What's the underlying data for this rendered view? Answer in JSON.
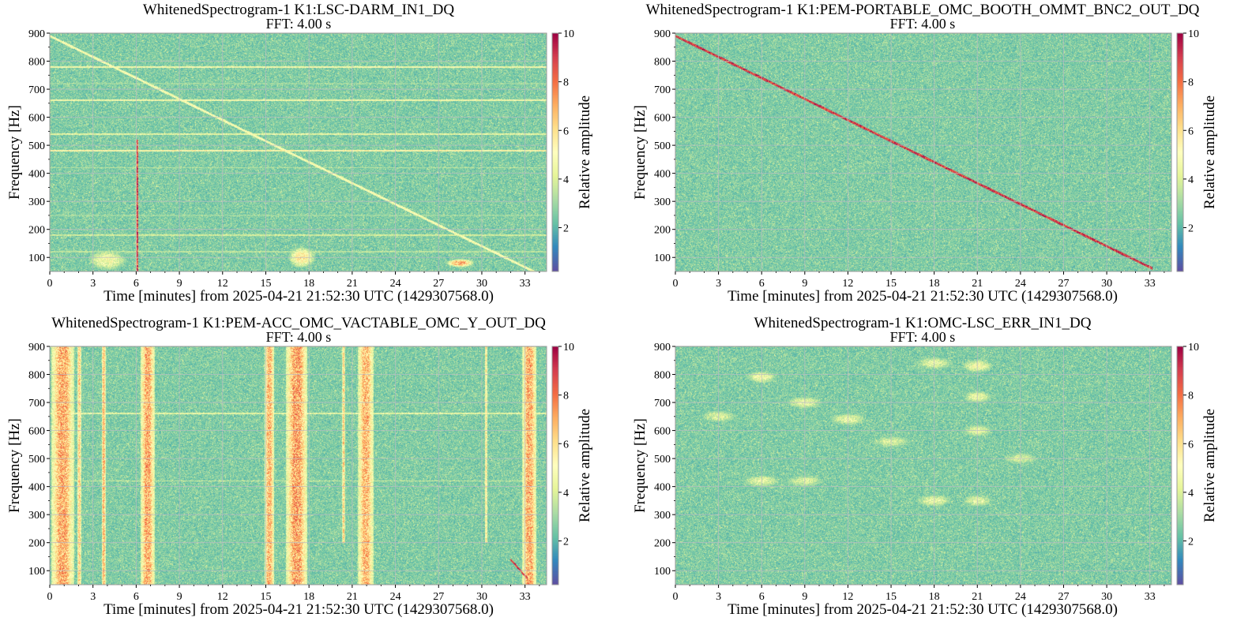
{
  "figure": {
    "colormap": [
      "#5e4fa2",
      "#3288bd",
      "#66c2a5",
      "#abdda4",
      "#e6f598",
      "#ffffbf",
      "#fee08b",
      "#fdae61",
      "#f46d43",
      "#d53e4f",
      "#9e0142"
    ],
    "background_color": "#3567a8",
    "grid_color": "#b9bcc4"
  },
  "chart_data": [
    {
      "type": "heatmap",
      "title": "WhitenedSpectrogram-1 K1:LSC-DARM_IN1_DQ",
      "subtitle": "FFT: 4.00 s",
      "xlabel": "Time [minutes] from 2025-04-21 21:52:30 UTC (1429307568.0)",
      "ylabel": "Frequency [Hz]",
      "colorbar_label": "Relative amplitude",
      "x_range": [
        0,
        34.5
      ],
      "y_range": [
        50,
        900
      ],
      "x_ticks": [
        0,
        3,
        6,
        9,
        12,
        15,
        18,
        21,
        24,
        27,
        30,
        33
      ],
      "y_ticks": [
        100,
        200,
        300,
        400,
        500,
        600,
        700,
        800,
        900
      ],
      "color_range": [
        0.2,
        10
      ],
      "color_ticks": [
        2,
        4,
        6,
        8,
        10
      ],
      "grid": true,
      "features": {
        "lines": [
          [
            780,
            0.5
          ],
          [
            660,
            0.5
          ],
          [
            540,
            0.45
          ],
          [
            480,
            0.55
          ],
          [
            420,
            0.35
          ],
          [
            180,
            0.4
          ],
          [
            120,
            0.35
          ],
          [
            720,
            0.3
          ],
          [
            250,
            0.3
          ]
        ],
        "sweeps": [
          [
            0,
            890,
            34,
            40,
            0.5
          ]
        ],
        "bursts": [
          [
            6.0,
            6.15,
            50,
            520,
            0.97
          ]
        ],
        "blobs": [
          [
            17.5,
            100,
            1.0,
            40,
            0.6
          ],
          [
            4.0,
            90,
            1.5,
            40,
            0.5
          ],
          [
            28.5,
            80,
            1.0,
            15,
            0.75
          ]
        ]
      }
    },
    {
      "type": "heatmap",
      "title": "WhitenedSpectrogram-1 K1:PEM-PORTABLE_OMC_BOOTH_OMMT_BNC2_OUT_DQ",
      "subtitle": "FFT: 4.00 s",
      "xlabel": "Time [minutes] from 2025-04-21 21:52:30 UTC (1429307568.0)",
      "ylabel": "Frequency [Hz]",
      "colorbar_label": "Relative amplitude",
      "x_range": [
        0,
        34.5
      ],
      "y_range": [
        50,
        900
      ],
      "x_ticks": [
        0,
        3,
        6,
        9,
        12,
        15,
        18,
        21,
        24,
        27,
        30,
        33
      ],
      "y_ticks": [
        100,
        200,
        300,
        400,
        500,
        600,
        700,
        800,
        900
      ],
      "color_range": [
        0.2,
        10
      ],
      "color_ticks": [
        2,
        4,
        6,
        8,
        10
      ],
      "grid": true,
      "features": {
        "lines": [],
        "sweeps": [
          [
            0,
            890,
            33.2,
            60,
            0.97
          ]
        ],
        "bursts": [],
        "blobs": []
      }
    },
    {
      "type": "heatmap",
      "title": "WhitenedSpectrogram-1 K1:PEM-ACC_OMC_VACTABLE_OMC_Y_OUT_DQ",
      "subtitle": "FFT: 4.00 s",
      "xlabel": "Time [minutes] from 2025-04-21 21:52:30 UTC (1429307568.0)",
      "ylabel": "Frequency [Hz]",
      "colorbar_label": "Relative amplitude",
      "x_range": [
        0,
        34.5
      ],
      "y_range": [
        50,
        900
      ],
      "x_ticks": [
        0,
        3,
        6,
        9,
        12,
        15,
        18,
        21,
        24,
        27,
        30,
        33
      ],
      "y_ticks": [
        100,
        200,
        300,
        400,
        500,
        600,
        700,
        800,
        900
      ],
      "color_range": [
        0.2,
        10
      ],
      "color_ticks": [
        2,
        4,
        6,
        8,
        10
      ],
      "grid": true,
      "features": {
        "lines": [
          [
            660,
            0.45
          ],
          [
            420,
            0.4
          ]
        ],
        "sweeps": [
          [
            32.0,
            140,
            33.2,
            70,
            0.95
          ]
        ],
        "bursts": [
          [
            0.1,
            1.7,
            50,
            900,
            0.68
          ],
          [
            1.9,
            2.2,
            50,
            900,
            0.6
          ],
          [
            3.6,
            3.9,
            50,
            900,
            0.65
          ],
          [
            6.3,
            7.3,
            50,
            900,
            0.68
          ],
          [
            14.9,
            15.6,
            50,
            900,
            0.66
          ],
          [
            16.4,
            17.9,
            50,
            900,
            0.7
          ],
          [
            20.3,
            20.5,
            200,
            900,
            0.6
          ],
          [
            21.4,
            22.5,
            50,
            900,
            0.66
          ],
          [
            30.2,
            30.4,
            200,
            900,
            0.55
          ],
          [
            32.8,
            33.8,
            50,
            900,
            0.68
          ]
        ],
        "blobs": []
      }
    },
    {
      "type": "heatmap",
      "title": "WhitenedSpectrogram-1 K1:OMC-LSC_ERR_IN1_DQ",
      "subtitle": "FFT: 4.00 s",
      "xlabel": "Time [minutes] from 2025-04-21 21:52:30 UTC (1429307568.0)",
      "ylabel": "Frequency [Hz]",
      "colorbar_label": "Relative amplitude",
      "x_range": [
        0,
        34.5
      ],
      "y_range": [
        50,
        900
      ],
      "x_ticks": [
        0,
        3,
        6,
        9,
        12,
        15,
        18,
        21,
        24,
        27,
        30,
        33
      ],
      "y_ticks": [
        100,
        200,
        300,
        400,
        500,
        600,
        700,
        800,
        900
      ],
      "color_range": [
        0.2,
        10
      ],
      "color_ticks": [
        2,
        4,
        6,
        8,
        10
      ],
      "grid": true,
      "features": {
        "lines": [],
        "sweeps": [],
        "bursts": [],
        "blobs": [
          [
            6.0,
            790,
            1.2,
            25,
            0.48
          ],
          [
            9.0,
            700,
            1.5,
            25,
            0.45
          ],
          [
            12.0,
            640,
            1.5,
            25,
            0.45
          ],
          [
            18.0,
            840,
            1.5,
            25,
            0.45
          ],
          [
            21.0,
            830,
            1.2,
            25,
            0.5
          ],
          [
            21.0,
            720,
            1.2,
            25,
            0.45
          ],
          [
            21.0,
            600,
            1.2,
            25,
            0.45
          ],
          [
            18.0,
            350,
            1.5,
            25,
            0.45
          ],
          [
            21.0,
            350,
            1.2,
            25,
            0.45
          ],
          [
            6.0,
            420,
            1.5,
            25,
            0.45
          ],
          [
            3.0,
            650,
            1.5,
            25,
            0.42
          ],
          [
            9.0,
            420,
            1.5,
            25,
            0.42
          ],
          [
            15.0,
            560,
            1.5,
            25,
            0.42
          ],
          [
            24.0,
            500,
            1.5,
            25,
            0.4
          ]
        ]
      }
    }
  ]
}
